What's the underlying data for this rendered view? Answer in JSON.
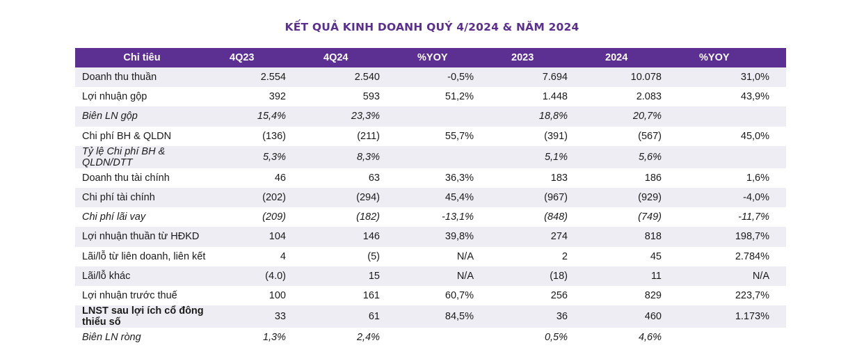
{
  "title": "KẾT QUẢ KINH DOANH QUÝ 4/2024 & NĂM 2024",
  "colors": {
    "header_bg": "#5c3092",
    "title": "#5a2f8f",
    "row_shade": "#eeedf4"
  },
  "columns": [
    "Chỉ tiêu",
    "4Q23",
    "4Q24",
    "%YOY",
    "2023",
    "2024",
    "%YOY"
  ],
  "rows": [
    {
      "label": "Doanh thu thuần",
      "values": [
        "2.554",
        "2.540",
        "-0,5%",
        "7.694",
        "10.078",
        "31,0%"
      ]
    },
    {
      "label": "Lợi nhuận gộp",
      "values": [
        "392",
        "593",
        "51,2%",
        "1.448",
        "2.083",
        "43,9%"
      ]
    },
    {
      "label": "Biên LN gộp",
      "values": [
        "15,4%",
        "23,3%",
        "",
        "18,8%",
        "20,7%",
        ""
      ]
    },
    {
      "label": "Chi phí BH & QLDN",
      "values": [
        "(136)",
        "(211)",
        "55,7%",
        "(391)",
        "(567)",
        "45,0%"
      ]
    },
    {
      "label": "Tỷ lệ Chi phí BH & QLDN/DTT",
      "values": [
        "5,3%",
        "8,3%",
        "",
        "5,1%",
        "5,6%",
        ""
      ]
    },
    {
      "label": "Doanh thu tài chính",
      "values": [
        "46",
        "63",
        "36,3%",
        "183",
        "186",
        "1,6%"
      ]
    },
    {
      "label": "Chi phí tài chính",
      "values": [
        "(202)",
        "(294)",
        "45,4%",
        "(967)",
        "(929)",
        "-4,0%"
      ]
    },
    {
      "label": "Chi phí lãi vay",
      "values": [
        "(209)",
        "(182)",
        "-13,1%",
        "(848)",
        "(749)",
        "-11,7%"
      ]
    },
    {
      "label": "Lợi nhuận thuần từ HĐKD",
      "values": [
        "104",
        "146",
        "39,8%",
        "274",
        "818",
        "198,7%"
      ]
    },
    {
      "label": "Lãi/lỗ từ liên doanh, liên kết",
      "values": [
        "4",
        "(5)",
        "N/A",
        "2",
        "45",
        "2.784%"
      ]
    },
    {
      "label": "Lãi/lỗ khác",
      "values": [
        "(4.0)",
        "15",
        "N/A",
        "(18)",
        "11",
        "N/A"
      ]
    },
    {
      "label": "Lợi nhuận trước thuế",
      "values": [
        "100",
        "161",
        "60,7%",
        "256",
        "829",
        "223,7%"
      ]
    },
    {
      "label": "LNST sau lợi ích cổ đông thiểu số",
      "values": [
        "33",
        "61",
        "84,5%",
        "36",
        "460",
        "1.173%"
      ]
    },
    {
      "label": "Biên LN ròng",
      "values": [
        "1,3%",
        "2,4%",
        "",
        "0,5%",
        "4,6%",
        ""
      ]
    }
  ]
}
